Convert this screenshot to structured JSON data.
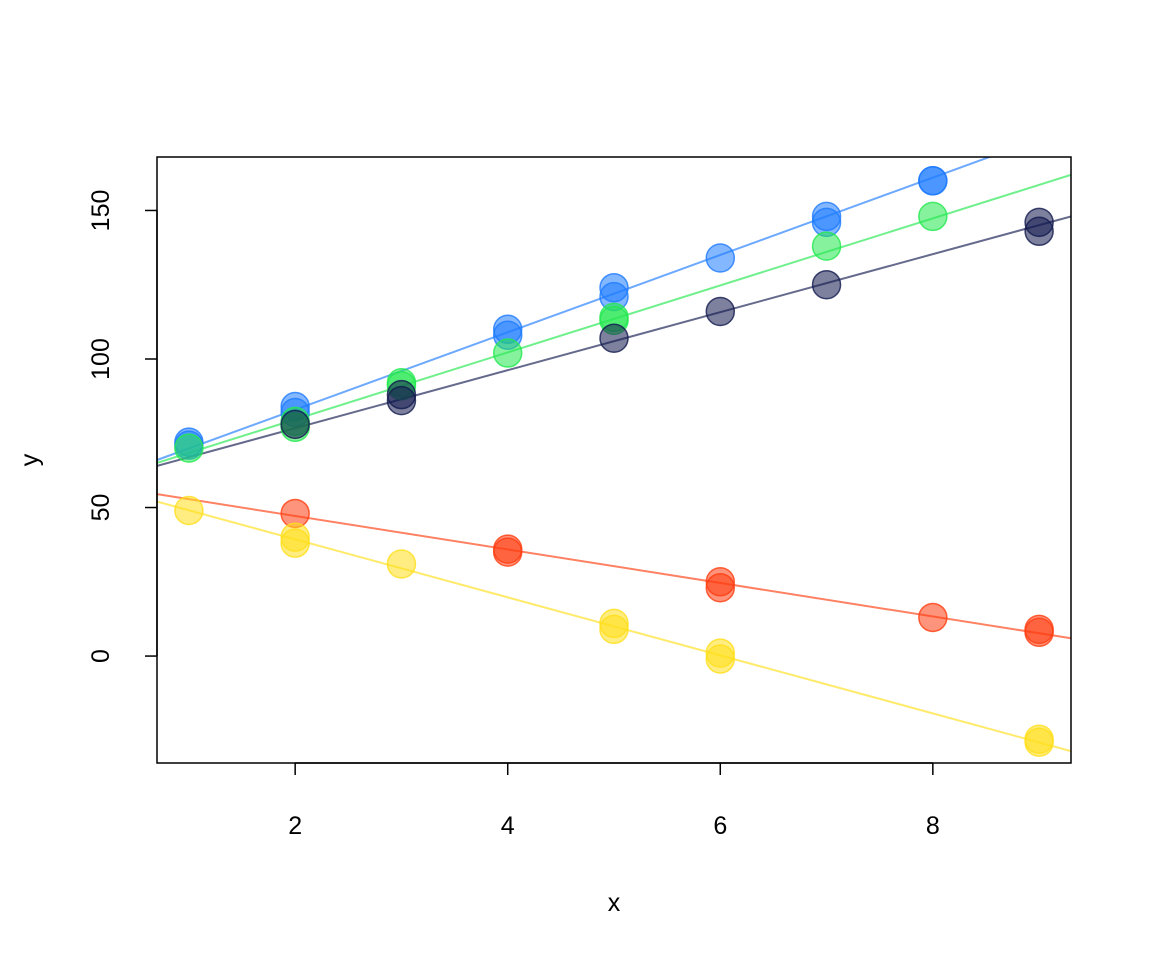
{
  "chart_data": {
    "type": "scatter",
    "title": "",
    "xlabel": "x",
    "ylabel": "y",
    "xlim": [
      0.7,
      9.3
    ],
    "ylim": [
      -36,
      168
    ],
    "x_ticks": [
      2,
      4,
      6,
      8
    ],
    "y_ticks": [
      0,
      50,
      100,
      150
    ],
    "grid": false,
    "series": [
      {
        "color": "#1E7BFF",
        "points": [
          [
            1,
            71
          ],
          [
            1,
            72
          ],
          [
            2,
            82
          ],
          [
            2,
            84
          ],
          [
            4,
            108
          ],
          [
            4,
            110
          ],
          [
            5,
            121
          ],
          [
            5,
            124
          ],
          [
            6,
            134
          ],
          [
            7,
            146
          ],
          [
            7,
            148
          ],
          [
            8,
            160
          ],
          [
            8,
            160
          ]
        ],
        "fit": [
          [
            0.7,
            66
          ],
          [
            9.3,
            178
          ]
        ]
      },
      {
        "color": "#22E84E",
        "points": [
          [
            1,
            70
          ],
          [
            2,
            77
          ],
          [
            2,
            79
          ],
          [
            3,
            91
          ],
          [
            3,
            92
          ],
          [
            4,
            102
          ],
          [
            5,
            113
          ],
          [
            5,
            114
          ],
          [
            7,
            138
          ],
          [
            8,
            148
          ]
        ],
        "fit": [
          [
            0.7,
            65
          ],
          [
            9.3,
            162
          ]
        ]
      },
      {
        "color": "#121A4E",
        "points": [
          [
            2,
            78
          ],
          [
            3,
            86
          ],
          [
            3,
            88
          ],
          [
            5,
            107
          ],
          [
            6,
            116
          ],
          [
            7,
            125
          ],
          [
            9,
            143
          ],
          [
            9,
            146
          ]
        ],
        "fit": [
          [
            0.7,
            64
          ],
          [
            9.3,
            148
          ]
        ]
      },
      {
        "color": "#FF3D10",
        "points": [
          [
            2,
            48
          ],
          [
            4,
            35
          ],
          [
            4,
            36
          ],
          [
            6,
            23
          ],
          [
            6,
            25
          ],
          [
            8,
            13
          ],
          [
            9,
            8
          ],
          [
            9,
            9
          ]
        ],
        "fit": [
          [
            0.7,
            54.5
          ],
          [
            9.3,
            6
          ]
        ]
      },
      {
        "color": "#FFDE1A",
        "points": [
          [
            1,
            49
          ],
          [
            2,
            38
          ],
          [
            2,
            40
          ],
          [
            3,
            31
          ],
          [
            5,
            9
          ],
          [
            5,
            11
          ],
          [
            6,
            -1
          ],
          [
            6,
            1
          ],
          [
            9,
            -28
          ],
          [
            9,
            -29
          ]
        ],
        "fit": [
          [
            0.7,
            52
          ],
          [
            9.3,
            -32
          ]
        ]
      }
    ]
  }
}
